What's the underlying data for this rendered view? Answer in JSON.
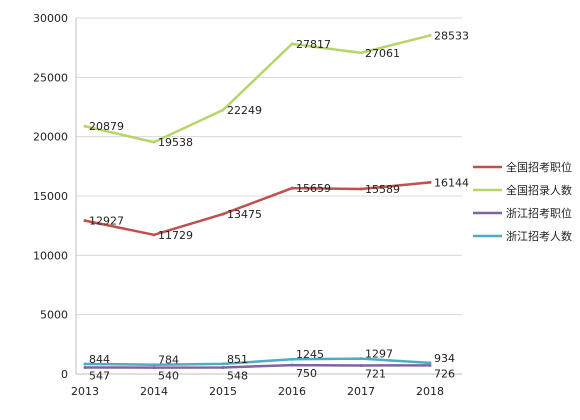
{
  "chart_data": {
    "type": "line",
    "title": "",
    "xlabel": "",
    "ylabel": "",
    "ylim": [
      0,
      30000
    ],
    "yticks": [
      "0",
      "5000",
      "10000",
      "15000",
      "20000",
      "25000",
      "30000"
    ],
    "categories": [
      "2013",
      "2014",
      "2015",
      "2016",
      "2017",
      "2018"
    ],
    "grid": "horizontal",
    "legend_position": "right",
    "series": [
      {
        "name": "全国招考职位",
        "color": "#c0504d",
        "values": [
          12927,
          11729,
          13475,
          15659,
          15589,
          16144
        ],
        "labels": [
          "12927",
          "11729",
          "13475",
          "15659",
          "15589",
          "16144"
        ]
      },
      {
        "name": "全国招录人数",
        "color": "#b5d56a",
        "values": [
          20879,
          19538,
          22249,
          27817,
          27061,
          28533
        ],
        "labels": [
          "20879",
          "19538",
          "22249",
          "27817",
          "27061",
          "28533"
        ]
      },
      {
        "name": "浙江招考职位",
        "color": "#8064a2",
        "values": [
          547,
          540,
          548,
          750,
          721,
          726
        ],
        "labels": [
          "547",
          "540",
          "548",
          "750",
          "721",
          "726"
        ]
      },
      {
        "name": "浙江招考人数",
        "color": "#4bacc6",
        "values": [
          844,
          784,
          851,
          1245,
          1297,
          934
        ],
        "labels": [
          "844",
          "784",
          "851",
          "1245",
          "1297",
          "934"
        ]
      }
    ]
  }
}
